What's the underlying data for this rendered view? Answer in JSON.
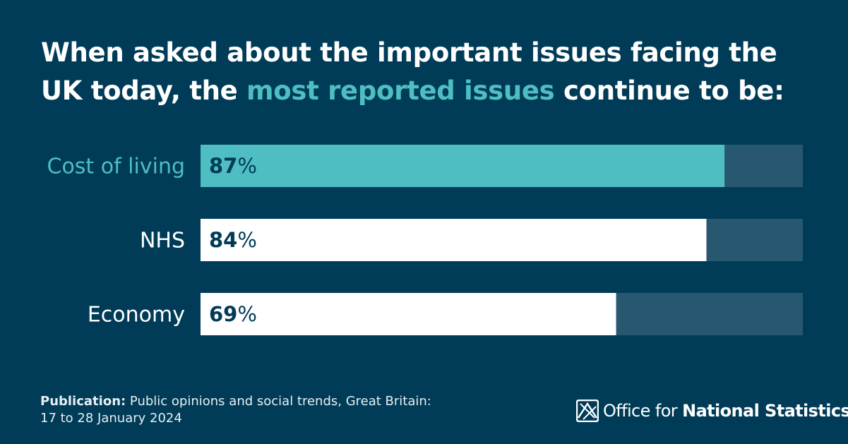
{
  "title": {
    "part1": "When asked about the important issues facing the UK today, the ",
    "highlight": "most reported issues",
    "part2": " continue to be:"
  },
  "colors": {
    "background": "#003C57",
    "highlight": "#4FBEC2",
    "bar_primary": "#4FBEC2",
    "bar_default": "#FFFFFF",
    "track": "#27586F"
  },
  "chart_data": {
    "type": "bar",
    "orientation": "horizontal",
    "categories": [
      "Cost of living",
      "NHS",
      "Economy"
    ],
    "values": [
      87,
      84,
      69
    ],
    "value_suffix": "%",
    "xlim": [
      0,
      100
    ],
    "highlighted_category": "Cost of living",
    "title": "When asked about the important issues facing the UK today, the most reported issues continue to be:",
    "xlabel": "",
    "ylabel": ""
  },
  "footer": {
    "publication_label": "Publication:",
    "publication_text": " Public opinions and social trends, Great Britain:",
    "date_range": "17 to 28 January 2024"
  },
  "logo": {
    "icon": "ons-logo-icon",
    "text_regular": "Office for ",
    "text_bold": "National Statistics"
  }
}
